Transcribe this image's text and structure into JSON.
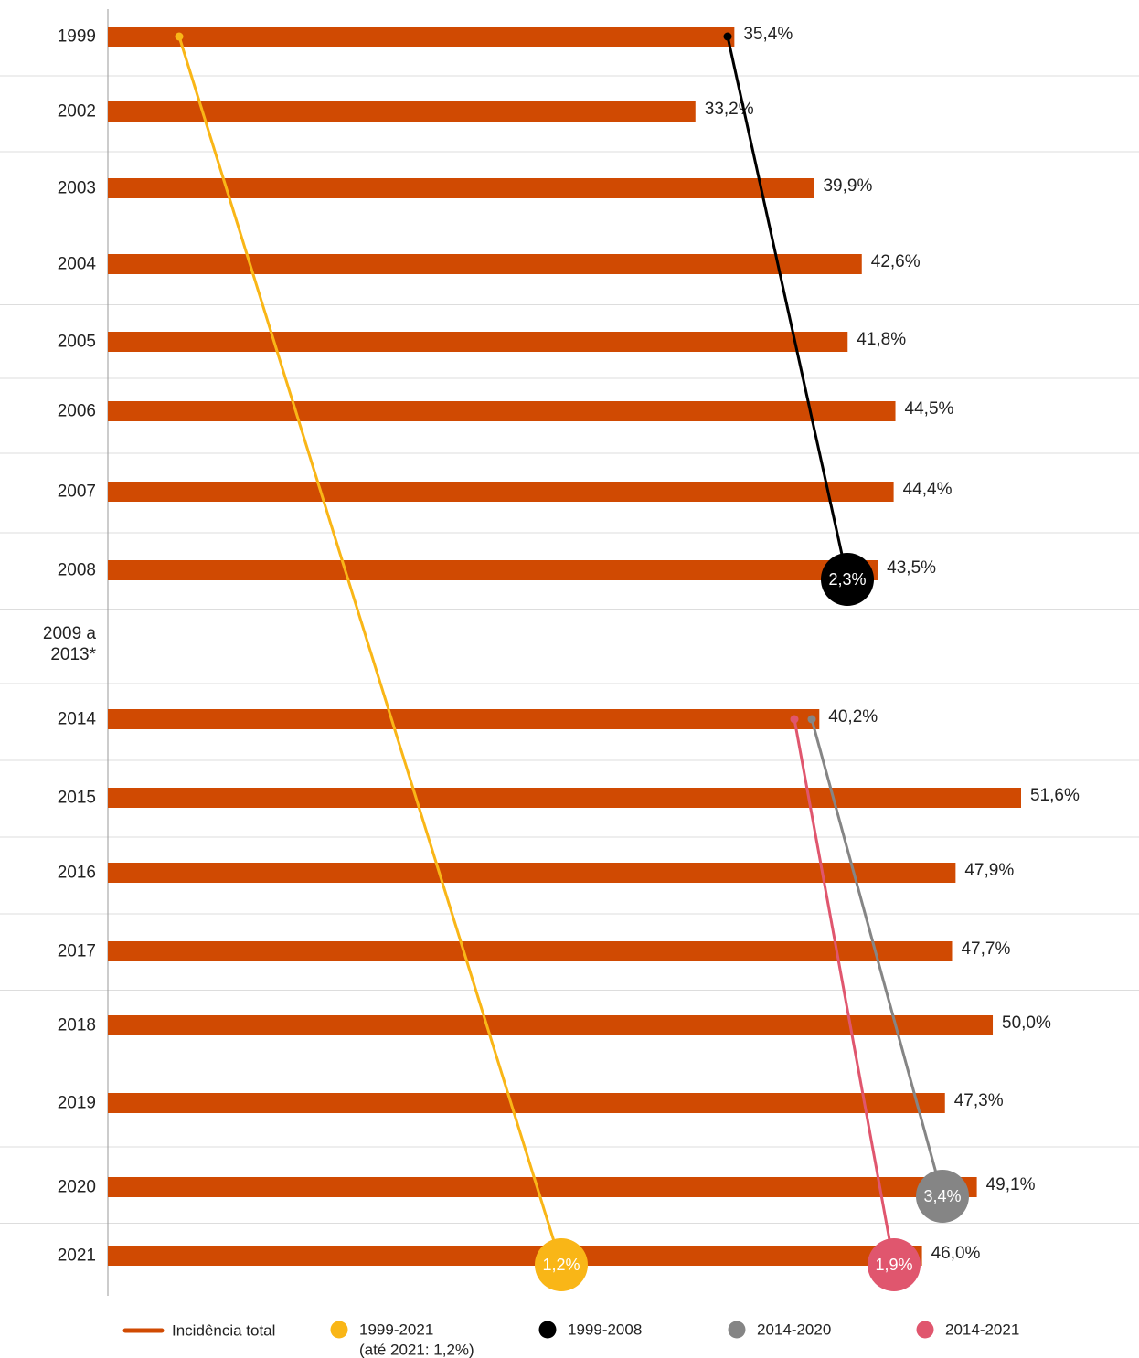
{
  "chart_data": {
    "type": "bar",
    "orientation": "horizontal",
    "categories": [
      "1999",
      "2002",
      "2003",
      "2004",
      "2005",
      "2006",
      "2007",
      "2008",
      "2009 a 2013*",
      "2014",
      "2015",
      "2016",
      "2017",
      "2018",
      "2019",
      "2020",
      "2021"
    ],
    "series": [
      {
        "name": "Incidência total",
        "color": "#d04a02",
        "values": [
          35.4,
          33.2,
          39.9,
          42.6,
          41.8,
          44.5,
          44.4,
          43.5,
          null,
          40.2,
          51.6,
          47.9,
          47.7,
          50.0,
          47.3,
          49.1,
          46.0
        ],
        "value_labels": [
          "35,4%",
          "33,2%",
          "39,9%",
          "42,6%",
          "41,8%",
          "44,5%",
          "44,4%",
          "43,5%",
          null,
          "40,2%",
          "51,6%",
          "47,9%",
          "47,7%",
          "50,0%",
          "47,3%",
          "49,1%",
          "46,0%"
        ]
      }
    ],
    "xlim": [
      0,
      53.5
    ],
    "trends": [
      {
        "name": "1999-2021",
        "note": "(até 2021: 1,2%)",
        "color": "#f9b617",
        "from": "1999",
        "to": "2021",
        "value": 1.2,
        "value_label": "1,2%"
      },
      {
        "name": "1999-2008",
        "color": "#000000",
        "from": "1999",
        "to": "2008",
        "value": 2.3,
        "value_label": "2,3%"
      },
      {
        "name": "2014-2020",
        "color": "#858585",
        "from": "2014",
        "to": "2020",
        "value": 3.4,
        "value_label": "3,4%"
      },
      {
        "name": "2014-2021",
        "color": "#e0566e",
        "from": "2014",
        "to": "2021",
        "value": 1.9,
        "value_label": "1,9%"
      }
    ]
  }
}
